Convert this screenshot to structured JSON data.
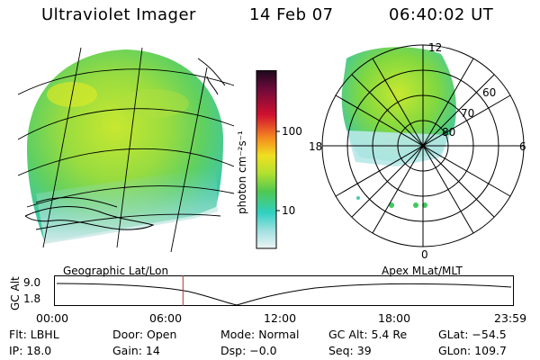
{
  "header": {
    "title": "Ultraviolet Imager",
    "date": "14 Feb 07",
    "time": "06:40:02 UT"
  },
  "colorbar": {
    "unit_label": "photon cm⁻²s⁻¹",
    "ticks": [
      "100",
      "10"
    ],
    "colors": [
      "#1a0a1a",
      "#6a0a3a",
      "#c0003a",
      "#f04020",
      "#f89a20",
      "#f0e020",
      "#c8e830",
      "#80d840",
      "#40c860",
      "#30d0c0",
      "#70dcdc",
      "#b8e8e8",
      "#e8f0f0"
    ]
  },
  "polar": {
    "lat_labels": [
      "80",
      "70",
      "60"
    ],
    "mlt_labels": {
      "top": "12",
      "left": "18",
      "right": "6",
      "bottom": "0"
    }
  },
  "timeline": {
    "left_label": "Geographic Lat/Lon",
    "right_label": "Apex  MLat/MLT",
    "axis_label": "GC Alt",
    "y_ticks": [
      "9.0",
      "1.8"
    ],
    "x_ticks": [
      "00:00",
      "06:00",
      "12:00",
      "18:00",
      "23:59"
    ],
    "current_time_fraction": 0.2778
  },
  "info": {
    "flt": "Flt: LBHL",
    "door": "Door: Open",
    "mode": "Mode: Normal",
    "gc_alt": "GC Alt: 5.4 Re",
    "glat": "GLat: −54.5",
    "ip": "IP: 18.0",
    "gain": "Gain: 14",
    "dsp": "Dsp:   −0.0",
    "seq": "Seq: 39",
    "glon": "GLon: 109.7"
  }
}
